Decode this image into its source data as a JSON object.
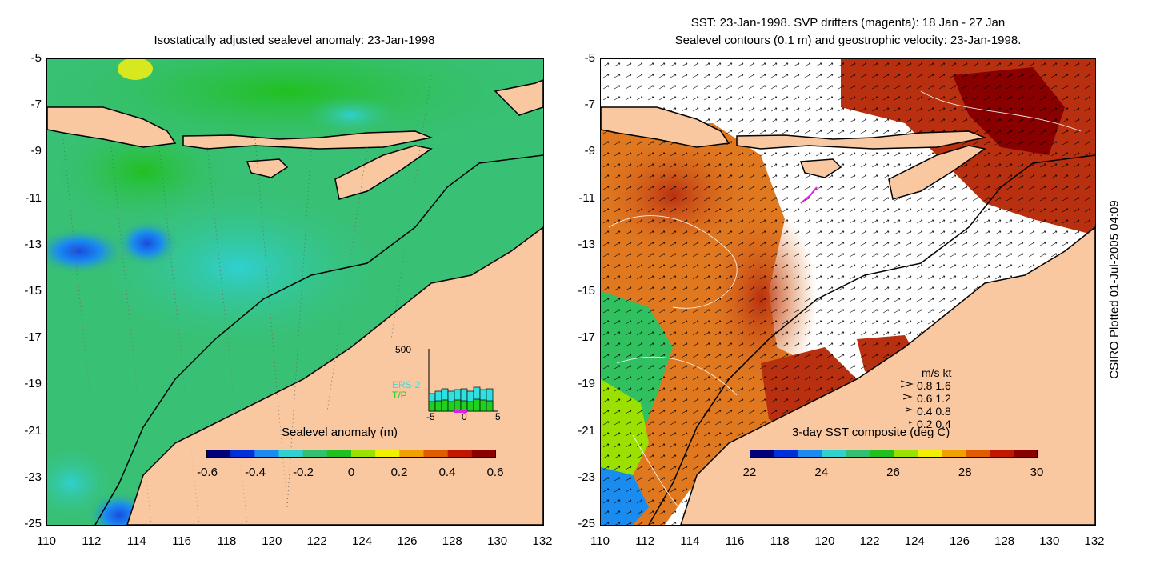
{
  "left_panel": {
    "title": "Isostatically adjusted sealevel anomaly: 23-Jan-1998",
    "colorbar_label": "Sealevel anomaly (m)",
    "colorbar_ticks": [
      "-0.6",
      "-0.4",
      "-0.2",
      "0",
      "0.2",
      "0.4",
      "0.6"
    ],
    "colorbar_colors": [
      "#00007a",
      "#0030d8",
      "#1a8cf0",
      "#2fd0d0",
      "#30c070",
      "#20c020",
      "#9be000",
      "#f0f000",
      "#f0a000",
      "#e05a00",
      "#c01800",
      "#880000"
    ],
    "inset": {
      "ymax_label": "500",
      "series_labels": [
        "ERS-2",
        "T/P"
      ],
      "series_colors": [
        "#30e0e0",
        "#20d020"
      ],
      "xtick_labels": [
        "-5",
        "0",
        "5"
      ]
    }
  },
  "right_panel": {
    "title_line1": "SST: 23-Jan-1998. SVP drifters (magenta): 18 Jan - 27 Jan",
    "title_line2": "Sealevel contours (0.1 m) and geostrophic velocity: 23-Jan-1998.",
    "colorbar_label": "3-day SST composite (deg C)",
    "colorbar_ticks": [
      "22",
      "24",
      "26",
      "28",
      "30"
    ],
    "colorbar_colors": [
      "#00007a",
      "#0030d8",
      "#1a8cf0",
      "#2fd0d0",
      "#30c070",
      "#20c020",
      "#9be000",
      "#f0f000",
      "#f0a000",
      "#e05a00",
      "#c01800",
      "#880000"
    ],
    "velocity_legend": {
      "header": "m/s  kt",
      "rows": [
        "0.8  1.6",
        "0.6  1.2",
        "0.4  0.8",
        "0.2  0.4"
      ]
    }
  },
  "axes": {
    "y_ticks": [
      "-5",
      "-7",
      "-9",
      "-11",
      "-13",
      "-15",
      "-17",
      "-19",
      "-21",
      "-23",
      "-25"
    ],
    "x_ticks": [
      "110",
      "112",
      "114",
      "116",
      "118",
      "120",
      "122",
      "124",
      "126",
      "128",
      "130",
      "132"
    ]
  },
  "colors": {
    "land": "#fac8a0",
    "ocean_left": "#38c074",
    "sst_warm": "#b83010",
    "sst_mid": "#e07820",
    "sst_cool": "#30c060",
    "cloud": "#ffffff"
  },
  "footer_stamp": "CSIRO Plotted 01-Jul-2005 04:09"
}
